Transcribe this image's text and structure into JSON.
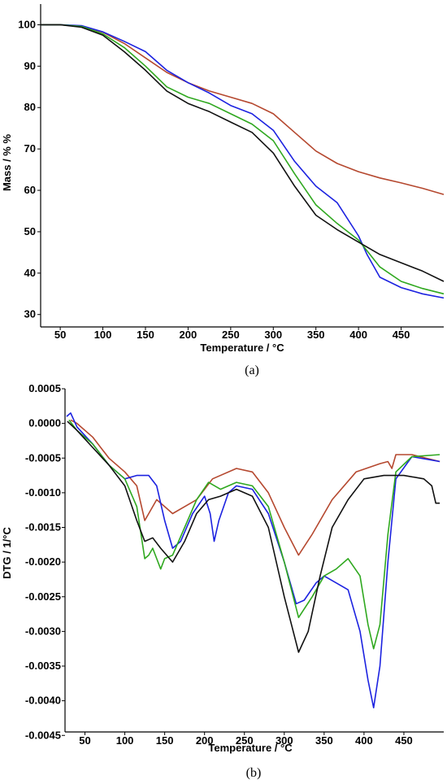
{
  "chart_data": [
    {
      "panel": "(a)",
      "type": "line",
      "xlabel": "Temperature / °C",
      "ylabel": "Mass / % %",
      "xlim": [
        27,
        500
      ],
      "ylim": [
        27,
        105
      ],
      "x_ticks": [
        "50",
        "100",
        "150",
        "200",
        "250",
        "300",
        "350",
        "400",
        "450"
      ],
      "y_ticks": [
        "100",
        "90",
        "80",
        "70",
        "60",
        "50",
        "40",
        "30"
      ],
      "grid": false,
      "legend": "none",
      "series": [
        {
          "color": "#b5482f",
          "points": [
            [
              27,
              100
            ],
            [
              50,
              100
            ],
            [
              75,
              99.6
            ],
            [
              100,
              98.2
            ],
            [
              125,
              95.5
            ],
            [
              150,
              92
            ],
            [
              175,
              88.5
            ],
            [
              200,
              86
            ],
            [
              225,
              84
            ],
            [
              250,
              82.5
            ],
            [
              275,
              81
            ],
            [
              300,
              78.5
            ],
            [
              325,
              74
            ],
            [
              350,
              69.5
            ],
            [
              375,
              66.5
            ],
            [
              400,
              64.5
            ],
            [
              425,
              63
            ],
            [
              450,
              61.8
            ],
            [
              475,
              60.5
            ],
            [
              500,
              59
            ]
          ]
        },
        {
          "color": "#1c22e0",
          "points": [
            [
              27,
              100
            ],
            [
              50,
              100
            ],
            [
              75,
              99.8
            ],
            [
              100,
              98.3
            ],
            [
              125,
              96
            ],
            [
              150,
              93.5
            ],
            [
              175,
              89
            ],
            [
              200,
              86
            ],
            [
              225,
              83.5
            ],
            [
              250,
              80.5
            ],
            [
              275,
              78.5
            ],
            [
              300,
              74.5
            ],
            [
              325,
              67
            ],
            [
              350,
              61
            ],
            [
              375,
              57
            ],
            [
              400,
              49
            ],
            [
              410,
              44.5
            ],
            [
              425,
              39
            ],
            [
              450,
              36.5
            ],
            [
              475,
              35
            ],
            [
              500,
              34
            ]
          ]
        },
        {
          "color": "#2fa81f",
          "points": [
            [
              27,
              100
            ],
            [
              50,
              100
            ],
            [
              75,
              99.6
            ],
            [
              100,
              97.8
            ],
            [
              125,
              94.5
            ],
            [
              150,
              90
            ],
            [
              175,
              85
            ],
            [
              200,
              82.5
            ],
            [
              225,
              81
            ],
            [
              250,
              78.5
            ],
            [
              275,
              76
            ],
            [
              300,
              72
            ],
            [
              325,
              64
            ],
            [
              350,
              56.5
            ],
            [
              375,
              52
            ],
            [
              400,
              48
            ],
            [
              425,
              41.5
            ],
            [
              450,
              38
            ],
            [
              475,
              36.3
            ],
            [
              500,
              35
            ]
          ]
        },
        {
          "color": "#111111",
          "points": [
            [
              27,
              100
            ],
            [
              50,
              100
            ],
            [
              75,
              99.4
            ],
            [
              100,
              97.5
            ],
            [
              125,
              93.5
            ],
            [
              150,
              89
            ],
            [
              175,
              84
            ],
            [
              200,
              81
            ],
            [
              225,
              79
            ],
            [
              250,
              76.5
            ],
            [
              275,
              74
            ],
            [
              300,
              69
            ],
            [
              325,
              61
            ],
            [
              350,
              54
            ],
            [
              375,
              50.5
            ],
            [
              400,
              47.5
            ],
            [
              425,
              44.5
            ],
            [
              450,
              42.5
            ],
            [
              475,
              40.5
            ],
            [
              500,
              38
            ]
          ]
        }
      ]
    },
    {
      "panel": "(b)",
      "type": "line",
      "xlabel": "Temperature / °C",
      "ylabel": "DTG / 1/°C",
      "xlim": [
        25,
        500
      ],
      "ylim": [
        -0.00445,
        0.0005
      ],
      "x_ticks": [
        "50",
        "100",
        "150",
        "200",
        "250",
        "300",
        "350",
        "400",
        "450"
      ],
      "y_ticks": [
        "0.0005",
        "0.0000",
        "-0.0005",
        "-0.0010",
        "-0.0015",
        "-0.0020",
        "-0.0025",
        "-0.0030",
        "-0.0035",
        "-0.0040",
        "-0.0045"
      ],
      "grid": false,
      "legend": "none",
      "series": [
        {
          "color": "#b5482f",
          "points": [
            [
              32,
              5e-05
            ],
            [
              40,
              0
            ],
            [
              60,
              -0.0002
            ],
            [
              80,
              -0.0005
            ],
            [
              100,
              -0.0007
            ],
            [
              115,
              -0.0009
            ],
            [
              125,
              -0.0014
            ],
            [
              130,
              -0.0013
            ],
            [
              140,
              -0.0011
            ],
            [
              150,
              -0.0012
            ],
            [
              160,
              -0.0013
            ],
            [
              175,
              -0.0012
            ],
            [
              190,
              -0.0011
            ],
            [
              210,
              -0.0008
            ],
            [
              240,
              -0.00065
            ],
            [
              260,
              -0.0007
            ],
            [
              280,
              -0.001
            ],
            [
              300,
              -0.0015
            ],
            [
              318,
              -0.0019
            ],
            [
              335,
              -0.0016
            ],
            [
              360,
              -0.0011
            ],
            [
              390,
              -0.0007
            ],
            [
              420,
              -0.00058
            ],
            [
              430,
              -0.00055
            ],
            [
              435,
              -0.00065
            ],
            [
              440,
              -0.00045
            ],
            [
              460,
              -0.00045
            ],
            [
              495,
              -0.00055
            ]
          ]
        },
        {
          "color": "#1c22e0",
          "points": [
            [
              27,
              0.0001
            ],
            [
              32,
              0.00015
            ],
            [
              40,
              -5e-05
            ],
            [
              60,
              -0.0003
            ],
            [
              80,
              -0.0006
            ],
            [
              100,
              -0.0008
            ],
            [
              115,
              -0.00075
            ],
            [
              130,
              -0.00075
            ],
            [
              140,
              -0.0009
            ],
            [
              150,
              -0.0014
            ],
            [
              160,
              -0.0018
            ],
            [
              170,
              -0.0017
            ],
            [
              185,
              -0.0013
            ],
            [
              200,
              -0.00105
            ],
            [
              207,
              -0.0013
            ],
            [
              212,
              -0.0017
            ],
            [
              218,
              -0.0014
            ],
            [
              230,
              -0.001
            ],
            [
              240,
              -0.0009
            ],
            [
              260,
              -0.00095
            ],
            [
              280,
              -0.0013
            ],
            [
              300,
              -0.002
            ],
            [
              315,
              -0.0026
            ],
            [
              325,
              -0.00255
            ],
            [
              340,
              -0.0023
            ],
            [
              350,
              -0.0022
            ],
            [
              365,
              -0.0023
            ],
            [
              380,
              -0.0024
            ],
            [
              395,
              -0.003
            ],
            [
              405,
              -0.0037
            ],
            [
              412,
              -0.0041
            ],
            [
              420,
              -0.0035
            ],
            [
              430,
              -0.002
            ],
            [
              440,
              -0.0008
            ],
            [
              460,
              -0.00048
            ],
            [
              495,
              -0.00055
            ]
          ]
        },
        {
          "color": "#2fa81f",
          "points": [
            [
              30,
              5e-05
            ],
            [
              40,
              -0.0001
            ],
            [
              60,
              -0.0003
            ],
            [
              80,
              -0.0006
            ],
            [
              100,
              -0.0008
            ],
            [
              115,
              -0.0012
            ],
            [
              125,
              -0.00195
            ],
            [
              130,
              -0.0019
            ],
            [
              135,
              -0.0018
            ],
            [
              140,
              -0.00195
            ],
            [
              145,
              -0.0021
            ],
            [
              150,
              -0.00195
            ],
            [
              160,
              -0.0019
            ],
            [
              175,
              -0.0015
            ],
            [
              190,
              -0.0011
            ],
            [
              205,
              -0.00085
            ],
            [
              220,
              -0.00095
            ],
            [
              240,
              -0.00085
            ],
            [
              260,
              -0.0009
            ],
            [
              280,
              -0.0012
            ],
            [
              300,
              -0.002
            ],
            [
              318,
              -0.0028
            ],
            [
              335,
              -0.0025
            ],
            [
              350,
              -0.0022
            ],
            [
              365,
              -0.0021
            ],
            [
              380,
              -0.00195
            ],
            [
              395,
              -0.0022
            ],
            [
              405,
              -0.0029
            ],
            [
              412,
              -0.00325
            ],
            [
              420,
              -0.0029
            ],
            [
              430,
              -0.0016
            ],
            [
              440,
              -0.0007
            ],
            [
              460,
              -0.00048
            ],
            [
              495,
              -0.00045
            ]
          ]
        },
        {
          "color": "#111111",
          "points": [
            [
              28,
              3e-05
            ],
            [
              40,
              -0.0001
            ],
            [
              60,
              -0.00035
            ],
            [
              80,
              -0.0006
            ],
            [
              100,
              -0.0009
            ],
            [
              115,
              -0.0014
            ],
            [
              125,
              -0.0017
            ],
            [
              135,
              -0.00165
            ],
            [
              145,
              -0.0018
            ],
            [
              160,
              -0.002
            ],
            [
              175,
              -0.0017
            ],
            [
              190,
              -0.0013
            ],
            [
              205,
              -0.0011
            ],
            [
              220,
              -0.00105
            ],
            [
              240,
              -0.00095
            ],
            [
              260,
              -0.00105
            ],
            [
              280,
              -0.0015
            ],
            [
              300,
              -0.0025
            ],
            [
              318,
              -0.0033
            ],
            [
              330,
              -0.003
            ],
            [
              345,
              -0.0022
            ],
            [
              360,
              -0.0015
            ],
            [
              380,
              -0.0011
            ],
            [
              400,
              -0.0008
            ],
            [
              425,
              -0.00075
            ],
            [
              450,
              -0.00075
            ],
            [
              475,
              -0.0008
            ],
            [
              485,
              -0.0009
            ],
            [
              490,
              -0.00115
            ],
            [
              495,
              -0.00115
            ]
          ]
        }
      ]
    }
  ]
}
